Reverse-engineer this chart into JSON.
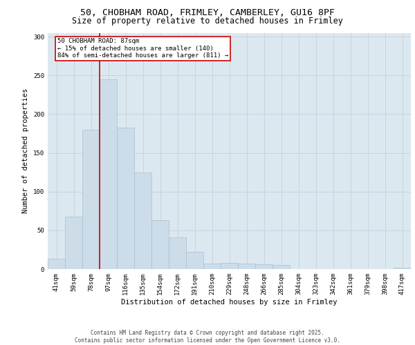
{
  "title_line1": "50, CHOBHAM ROAD, FRIMLEY, CAMBERLEY, GU16 8PF",
  "title_line2": "Size of property relative to detached houses in Frimley",
  "xlabel": "Distribution of detached houses by size in Frimley",
  "ylabel": "Number of detached properties",
  "categories": [
    "41sqm",
    "59sqm",
    "78sqm",
    "97sqm",
    "116sqm",
    "135sqm",
    "154sqm",
    "172sqm",
    "191sqm",
    "210sqm",
    "229sqm",
    "248sqm",
    "266sqm",
    "285sqm",
    "304sqm",
    "323sqm",
    "342sqm",
    "361sqm",
    "379sqm",
    "398sqm",
    "417sqm"
  ],
  "values": [
    13,
    68,
    180,
    245,
    183,
    125,
    63,
    41,
    22,
    7,
    8,
    7,
    6,
    5,
    0,
    0,
    0,
    0,
    0,
    0,
    2
  ],
  "bar_color": "#ccdce8",
  "bar_edgecolor": "#aabfd0",
  "grid_color": "#c8d4de",
  "background_color": "#dce8f0",
  "vline_x": 2.5,
  "vline_color": "#cc0000",
  "annotation_text": "50 CHOBHAM ROAD: 87sqm\n← 15% of detached houses are smaller (140)\n84% of semi-detached houses are larger (811) →",
  "annotation_box_facecolor": "#ffffff",
  "annotation_box_edgecolor": "#cc0000",
  "ylim": [
    0,
    305
  ],
  "yticks": [
    0,
    50,
    100,
    150,
    200,
    250,
    300
  ],
  "footer_line1": "Contains HM Land Registry data © Crown copyright and database right 2025.",
  "footer_line2": "Contains public sector information licensed under the Open Government Licence v3.0.",
  "title_fontsize": 9.5,
  "subtitle_fontsize": 8.5,
  "axis_label_fontsize": 7.5,
  "tick_fontsize": 6.5,
  "annotation_fontsize": 6.5,
  "footer_fontsize": 5.5
}
